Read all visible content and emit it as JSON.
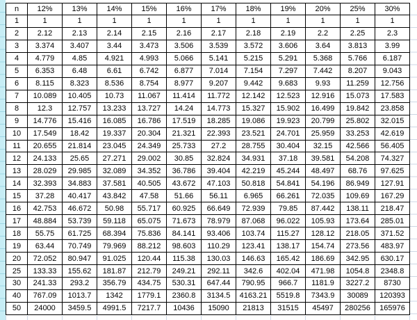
{
  "table": {
    "corner_label": "n",
    "columns": [
      "12%",
      "13%",
      "14%",
      "15%",
      "16%",
      "17%",
      "18%",
      "19%",
      "20%",
      "25%",
      "30%"
    ],
    "rows": [
      {
        "n": "1",
        "values": [
          "1",
          "1",
          "1",
          "1",
          "1",
          "1",
          "1",
          "1",
          "1",
          "1",
          "1"
        ]
      },
      {
        "n": "2",
        "values": [
          "2.12",
          "2.13",
          "2.14",
          "2.15",
          "2.16",
          "2.17",
          "2.18",
          "2.19",
          "2.2",
          "2.25",
          "2.3"
        ]
      },
      {
        "n": "3",
        "values": [
          "3.374",
          "3.407",
          "3.44",
          "3.473",
          "3.506",
          "3.539",
          "3.572",
          "3.606",
          "3.64",
          "3.813",
          "3.99"
        ]
      },
      {
        "n": "4",
        "values": [
          "4.779",
          "4.85",
          "4.921",
          "4.993",
          "5.066",
          "5.141",
          "5.215",
          "5.291",
          "5.368",
          "5.766",
          "6.187"
        ]
      },
      {
        "n": "5",
        "values": [
          "6.353",
          "6.48",
          "6.61",
          "6.742",
          "6.877",
          "7.014",
          "7.154",
          "7.297",
          "7.442",
          "8.207",
          "9.043"
        ]
      },
      {
        "n": "6",
        "values": [
          "8.115",
          "8.323",
          "8.536",
          "8.754",
          "8.977",
          "9.207",
          "9.442",
          "9.683",
          "9.93",
          "11.259",
          "12.756"
        ]
      },
      {
        "n": "7",
        "values": [
          "10.089",
          "10.405",
          "10.73",
          "11.067",
          "11.414",
          "11.772",
          "12.142",
          "12.523",
          "12.916",
          "15.073",
          "17.583"
        ]
      },
      {
        "n": "8",
        "values": [
          "12.3",
          "12.757",
          "13.233",
          "13.727",
          "14.24",
          "14.773",
          "15.327",
          "15.902",
          "16.499",
          "19.842",
          "23.858"
        ]
      },
      {
        "n": "9",
        "values": [
          "14.776",
          "15.416",
          "16.085",
          "16.786",
          "17.519",
          "18.285",
          "19.086",
          "19.923",
          "20.799",
          "25.802",
          "32.015"
        ]
      },
      {
        "n": "10",
        "values": [
          "17.549",
          "18.42",
          "19.337",
          "20.304",
          "21.321",
          "22.393",
          "23.521",
          "24.701",
          "25.959",
          "33.253",
          "42.619"
        ]
      },
      {
        "n": "11",
        "values": [
          "20.655",
          "21.814",
          "23.045",
          "24.349",
          "25.733",
          "27.2",
          "28.755",
          "30.404",
          "32.15",
          "42.566",
          "56.405"
        ]
      },
      {
        "n": "12",
        "values": [
          "24.133",
          "25.65",
          "27.271",
          "29.002",
          "30.85",
          "32.824",
          "34.931",
          "37.18",
          "39.581",
          "54.208",
          "74.327"
        ]
      },
      {
        "n": "13",
        "values": [
          "28.029",
          "29.985",
          "32.089",
          "34.352",
          "36.786",
          "39.404",
          "42.219",
          "45.244",
          "48.497",
          "68.76",
          "97.625"
        ]
      },
      {
        "n": "14",
        "values": [
          "32.393",
          "34.883",
          "37.581",
          "40.505",
          "43.672",
          "47.103",
          "50.818",
          "54.841",
          "54.196",
          "86.949",
          "127.91"
        ]
      },
      {
        "n": "15",
        "values": [
          "37.28",
          "40.417",
          "43.842",
          "47.58",
          "51.66",
          "56.11",
          "6.965",
          "66.261",
          "72.035",
          "109.69",
          "167.29"
        ]
      },
      {
        "n": "16",
        "values": [
          "42.753",
          "46.672",
          "50.98",
          "55.717",
          "60.925",
          "66.649",
          "72.939",
          "79.85",
          "87.442",
          "138.11",
          "218.47"
        ]
      },
      {
        "n": "17",
        "values": [
          "48.884",
          "53.739",
          "59.118",
          "65.075",
          "71.673",
          "78.979",
          "87.068",
          "96.022",
          "105.93",
          "173.64",
          "285.01"
        ]
      },
      {
        "n": "18",
        "values": [
          "55.75",
          "61.725",
          "68.394",
          "75.836",
          "84.141",
          "93.406",
          "103.74",
          "115.27",
          "128.12",
          "218.05",
          "371.52"
        ]
      },
      {
        "n": "19",
        "values": [
          "63.44",
          "70.749",
          "79.969",
          "88.212",
          "98.603",
          "110.29",
          "123.41",
          "138.17",
          "154.74",
          "273.56",
          "483.97"
        ]
      },
      {
        "n": "20",
        "values": [
          "72.052",
          "80.947",
          "91.025",
          "120.44",
          "115.38",
          "130.03",
          "146.63",
          "165.42",
          "186.69",
          "342.95",
          "630.17"
        ]
      },
      {
        "n": "25",
        "values": [
          "133.33",
          "155.62",
          "181.87",
          "212.79",
          "249.21",
          "292.11",
          "342.6",
          "402.04",
          "471.98",
          "1054.8",
          "2348.8"
        ]
      },
      {
        "n": "30",
        "values": [
          "241.33",
          "293.2",
          "356.79",
          "434.75",
          "530.31",
          "647.44",
          "790.95",
          "966.7",
          "1181.9",
          "3227.2",
          "8730"
        ]
      },
      {
        "n": "40",
        "values": [
          "767.09",
          "1013.7",
          "1342",
          "1779.1",
          "2360.8",
          "3134.5",
          "4163.21",
          "5519.8",
          "7343.9",
          "30089",
          "120393"
        ]
      },
      {
        "n": "50",
        "values": [
          "24000",
          "3459.5",
          "4991.5",
          "7217.7",
          "10436",
          "15090",
          "21813",
          "31515",
          "45497",
          "280256",
          "165976"
        ]
      }
    ]
  },
  "colors": {
    "table_border": "#000000",
    "cell_background": "#ffffff",
    "text": "#000000",
    "left_strip_background": "#c7edf5",
    "faint_gridline": "#ccd6e4"
  }
}
